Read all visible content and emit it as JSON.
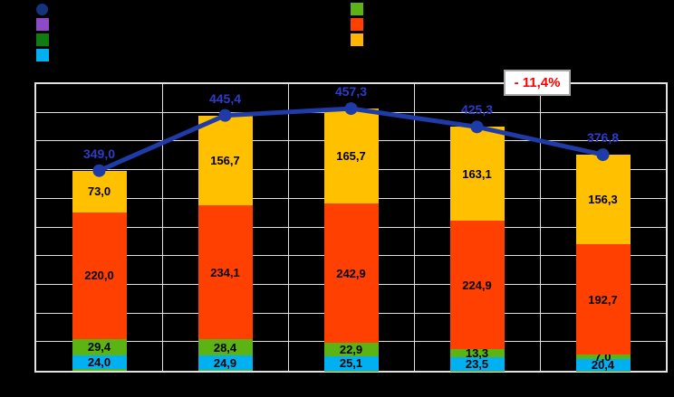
{
  "legend": {
    "left_column": [
      {
        "name": "total-line",
        "shape": "circle",
        "color": "#16337E",
        "label": ""
      },
      {
        "name": "series-purple",
        "shape": "square",
        "color": "#8C4BC4",
        "label": ""
      },
      {
        "name": "series-dark-green",
        "shape": "square",
        "color": "#107C10",
        "label": ""
      },
      {
        "name": "series-cyan",
        "shape": "square",
        "color": "#00B0F0",
        "label": ""
      }
    ],
    "right_column": [
      {
        "name": "series-green",
        "shape": "square",
        "color": "#5CB414",
        "label": ""
      },
      {
        "name": "series-orange",
        "shape": "square",
        "color": "#FF4000",
        "label": ""
      },
      {
        "name": "series-yellow",
        "shape": "square",
        "color": "#FFB400",
        "label": ""
      }
    ]
  },
  "annotation": {
    "text": "- 11,4%",
    "color": "#FF0000"
  },
  "chart_data": {
    "type": "bar",
    "subtype": "stacked-bars-with-total-line",
    "categories": [
      "",
      "",
      "",
      "",
      ""
    ],
    "ylim": [
      0,
      500
    ],
    "ystep": 50,
    "grid": true,
    "legend_position": "top",
    "series": [
      {
        "name": "base-sliver-segment",
        "color": "#5CB414",
        "values": [
          2.6,
          1.3,
          0.7,
          0.5,
          0.4
        ],
        "labels": [
          "",
          "",
          "",
          "",
          ""
        ]
      },
      {
        "name": "cyan-segment",
        "color": "#00B0F0",
        "values": [
          24.0,
          24.9,
          25.1,
          23.5,
          20.4
        ],
        "labels": [
          "24,0",
          "24,9",
          "25,1",
          "23,5",
          "20,4"
        ]
      },
      {
        "name": "green-segment",
        "color": "#5CB414",
        "values": [
          29.4,
          28.4,
          22.9,
          13.3,
          7.0
        ],
        "labels": [
          "29,4",
          "28,4",
          "22,9",
          "13,3",
          "7,0"
        ]
      },
      {
        "name": "orange-segment",
        "color": "#FF4000",
        "values": [
          220.0,
          234.1,
          242.9,
          224.9,
          192.7
        ],
        "labels": [
          "220,0",
          "234,1",
          "242,9",
          "224,9",
          "192,7"
        ]
      },
      {
        "name": "yellow-segment",
        "color": "#FFC000",
        "values": [
          73.0,
          156.7,
          165.7,
          163.1,
          156.3
        ],
        "labels": [
          "73,0",
          "156,7",
          "165,7",
          "163,1",
          "156,3"
        ]
      }
    ],
    "line": {
      "name": "total-line",
      "color": "#1E3BA8",
      "label_color": "#2E3CC8",
      "values": [
        349.0,
        445.4,
        457.3,
        425.3,
        376.8
      ],
      "labels": [
        "349,0",
        "445,4",
        "457,3",
        "425,3",
        "376,8"
      ]
    }
  }
}
